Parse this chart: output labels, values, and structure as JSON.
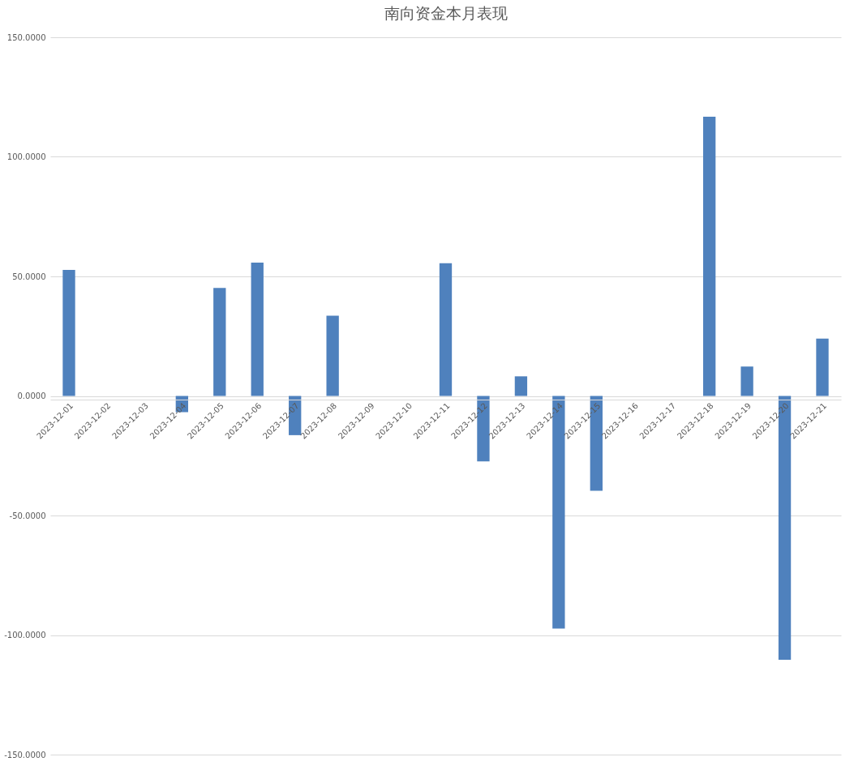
{
  "chart_data": {
    "type": "bar",
    "title": "南向资金本月表现",
    "categories": [
      "2023-12-01",
      "2023-12-02",
      "2023-12-03",
      "2023-12-04",
      "2023-12-05",
      "2023-12-06",
      "2023-12-07",
      "2023-12-08",
      "2023-12-09",
      "2023-12-10",
      "2023-12-11",
      "2023-12-12",
      "2023-12-13",
      "2023-12-14",
      "2023-12-15",
      "2023-12-16",
      "2023-12-17",
      "2023-12-18",
      "2023-12-19",
      "2023-12-20",
      "2023-12-21"
    ],
    "values": [
      52.7,
      0,
      0,
      -6.8,
      45.2,
      55.8,
      -16.4,
      33.6,
      0,
      0,
      55.5,
      -27.4,
      8.2,
      -97.3,
      -39.7,
      0,
      0,
      116.8,
      12.3,
      -110.3,
      24.0
    ],
    "color": "#4f81bd",
    "ylim": [
      -150,
      150
    ],
    "yticks": [
      {
        "value": -150,
        "label": "-150.0000"
      },
      {
        "value": -100,
        "label": "-100.0000"
      },
      {
        "value": -50,
        "label": "-50.0000"
      },
      {
        "value": 0,
        "label": "0.0000"
      },
      {
        "value": 50,
        "label": "50.0000"
      },
      {
        "value": 100,
        "label": "100.0000"
      },
      {
        "value": 150,
        "label": "150.0000"
      }
    ],
    "grid": "y"
  }
}
